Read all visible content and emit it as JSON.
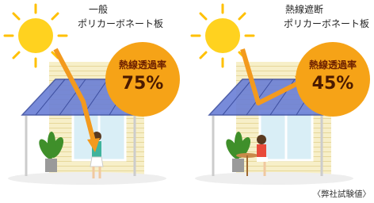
{
  "panels": [
    {
      "title_lines": [
        "一般",
        "ポリカーボネート板"
      ],
      "badge_label": "熱線透過率",
      "badge_value": "75%"
    },
    {
      "title_lines": [
        "熱線遮断",
        "ポリカーボネート板"
      ],
      "badge_label": "熱線透過率",
      "badge_value": "45%"
    }
  ],
  "footnote": "〈弊社試験値〉"
}
